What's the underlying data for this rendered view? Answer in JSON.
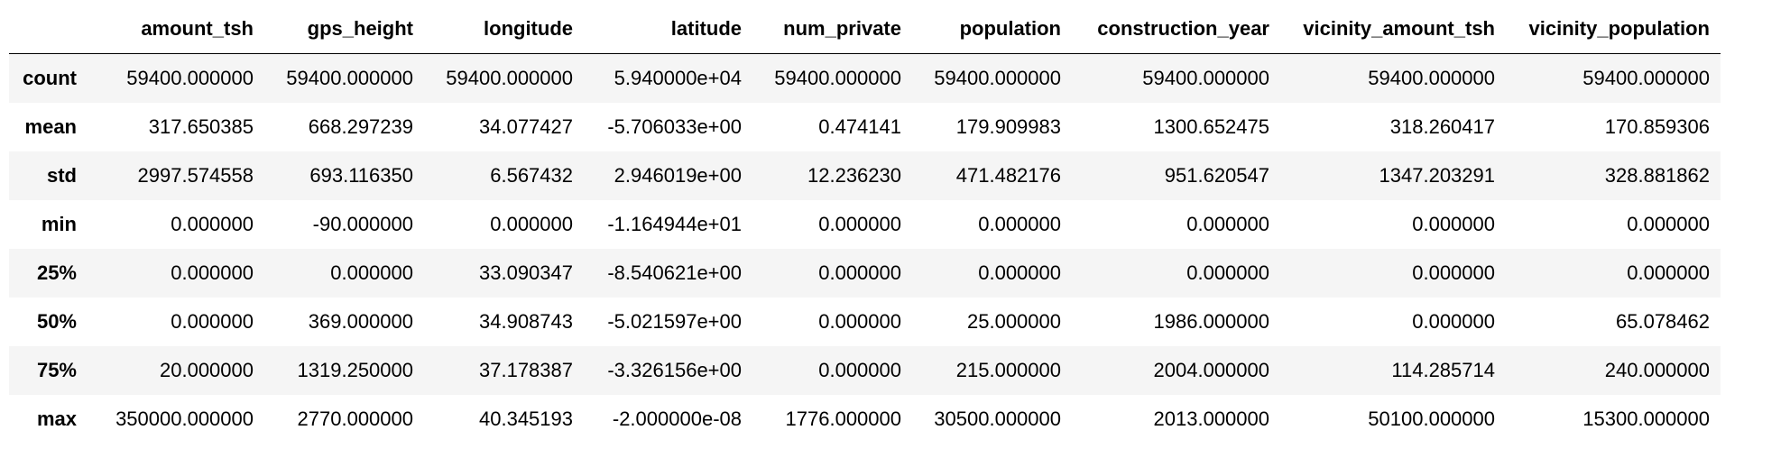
{
  "table": {
    "index_header": "",
    "columns": [
      "amount_tsh",
      "gps_height",
      "longitude",
      "latitude",
      "num_private",
      "population",
      "construction_year",
      "vicinity_amount_tsh",
      "vicinity_population"
    ],
    "rows": [
      {
        "label": "count",
        "values": [
          "59400.000000",
          "59400.000000",
          "59400.000000",
          "5.940000e+04",
          "59400.000000",
          "59400.000000",
          "59400.000000",
          "59400.000000",
          "59400.000000"
        ]
      },
      {
        "label": "mean",
        "values": [
          "317.650385",
          "668.297239",
          "34.077427",
          "-5.706033e+00",
          "0.474141",
          "179.909983",
          "1300.652475",
          "318.260417",
          "170.859306"
        ]
      },
      {
        "label": "std",
        "values": [
          "2997.574558",
          "693.116350",
          "6.567432",
          "2.946019e+00",
          "12.236230",
          "471.482176",
          "951.620547",
          "1347.203291",
          "328.881862"
        ]
      },
      {
        "label": "min",
        "values": [
          "0.000000",
          "-90.000000",
          "0.000000",
          "-1.164944e+01",
          "0.000000",
          "0.000000",
          "0.000000",
          "0.000000",
          "0.000000"
        ]
      },
      {
        "label": "25%",
        "values": [
          "0.000000",
          "0.000000",
          "33.090347",
          "-8.540621e+00",
          "0.000000",
          "0.000000",
          "0.000000",
          "0.000000",
          "0.000000"
        ]
      },
      {
        "label": "50%",
        "values": [
          "0.000000",
          "369.000000",
          "34.908743",
          "-5.021597e+00",
          "0.000000",
          "25.000000",
          "1986.000000",
          "0.000000",
          "65.078462"
        ]
      },
      {
        "label": "75%",
        "values": [
          "20.000000",
          "1319.250000",
          "37.178387",
          "-3.326156e+00",
          "0.000000",
          "215.000000",
          "2004.000000",
          "114.285714",
          "240.000000"
        ]
      },
      {
        "label": "max",
        "values": [
          "350000.000000",
          "2770.000000",
          "40.345193",
          "-2.000000e-08",
          "1776.000000",
          "30500.000000",
          "2013.000000",
          "50100.000000",
          "15300.000000"
        ]
      }
    ]
  }
}
